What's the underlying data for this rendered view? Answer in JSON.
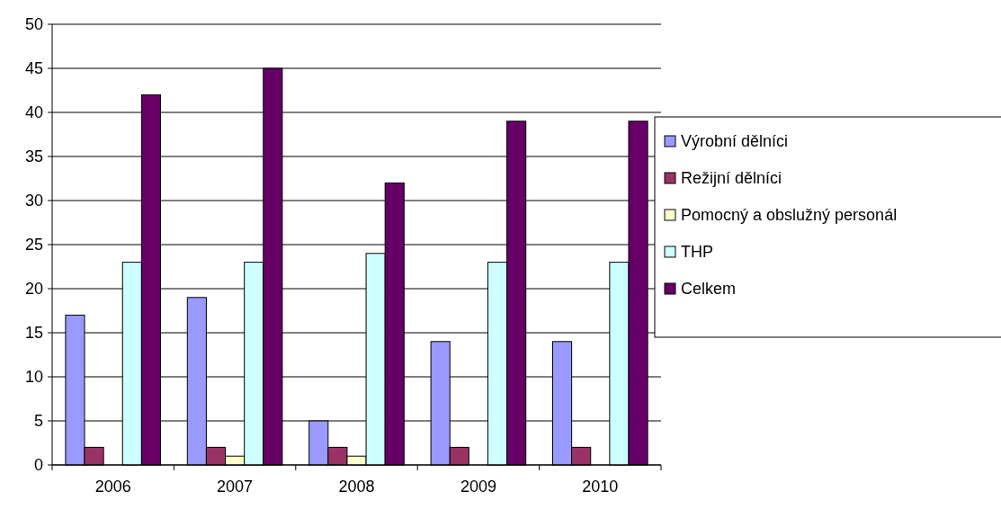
{
  "chart_data": {
    "type": "bar",
    "categories": [
      "2006",
      "2007",
      "2008",
      "2009",
      "2010"
    ],
    "series": [
      {
        "name": "Výrobní dělníci",
        "color": "#9999ff",
        "values": [
          17,
          19,
          5,
          14,
          14
        ]
      },
      {
        "name": "Režijní dělníci",
        "color": "#993366",
        "values": [
          2,
          2,
          2,
          2,
          2
        ]
      },
      {
        "name": "Pomocný a obslužný personál",
        "color": "#ffffcc",
        "values": [
          0,
          1,
          1,
          0,
          0
        ]
      },
      {
        "name": "THP",
        "color": "#ccffff",
        "values": [
          23,
          23,
          24,
          23,
          23
        ]
      },
      {
        "name": "Celkem",
        "color": "#660066",
        "values": [
          42,
          45,
          32,
          39,
          39
        ]
      }
    ],
    "ylim": [
      0,
      50
    ],
    "yticks": [
      0,
      5,
      10,
      15,
      20,
      25,
      30,
      35,
      40,
      45,
      50
    ],
    "grid": "y",
    "legend": "right"
  }
}
